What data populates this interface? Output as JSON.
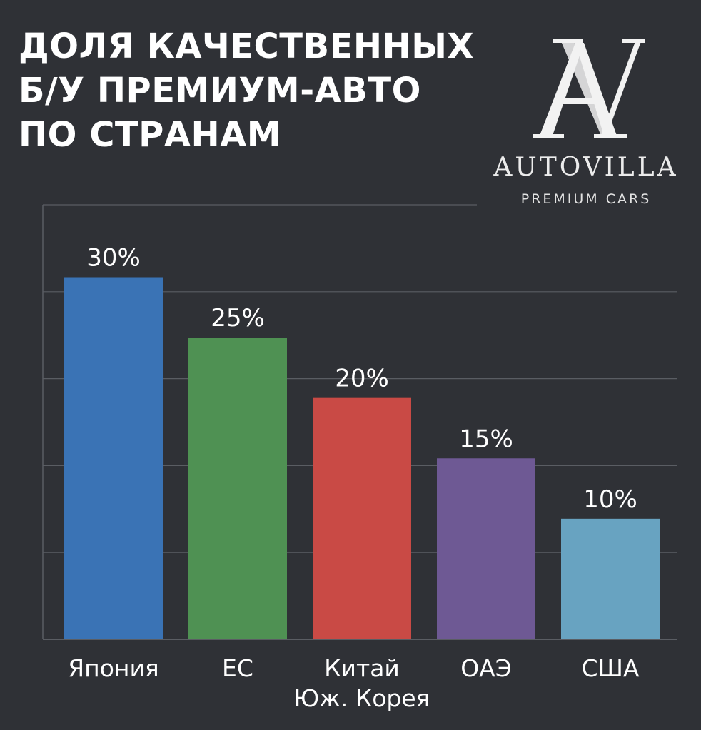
{
  "title_lines": [
    "ДОЛЯ КАЧЕСТВЕННЫХ",
    "Б/У ПРЕМИУМ-АВТО",
    "ПО СТРАНАМ"
  ],
  "logo": {
    "name": "AUTOVILLA",
    "tagline": "PREMIUM CARS",
    "monogram": "AV"
  },
  "colors": {
    "background": "#2f3136",
    "grid": "#5a5d63",
    "text": "#ffffff"
  },
  "chart_data": {
    "type": "bar",
    "title": "ДОЛЯ КАЧЕСТВЕННЫХ Б/У ПРЕМИУМ-АВТО ПО СТРАНАМ",
    "categories": [
      "Япония",
      "ЕС",
      "Китай\nЮж. Корея",
      "ОАЭ",
      "США"
    ],
    "category_lines": [
      [
        "Япония"
      ],
      [
        "ЕС"
      ],
      [
        "Китай",
        "Юж. Корея"
      ],
      [
        "ОАЭ"
      ],
      [
        "США"
      ]
    ],
    "values": [
      30,
      25,
      20,
      15,
      10
    ],
    "value_labels": [
      "30%",
      "25%",
      "20%",
      "15%",
      "10%"
    ],
    "bar_colors": [
      "#3a73b5",
      "#4f9153",
      "#c94a45",
      "#6e5994",
      "#68a3c1"
    ],
    "ylim": [
      0,
      36
    ],
    "grid": true,
    "legend": "none"
  }
}
